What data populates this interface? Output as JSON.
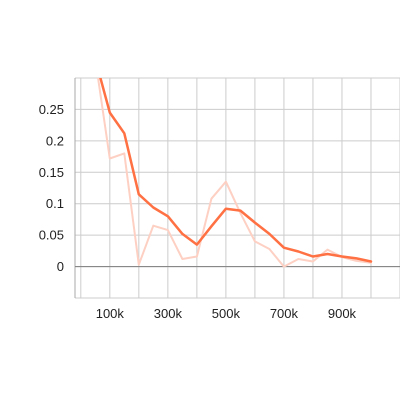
{
  "chart_data": {
    "type": "line",
    "title": "",
    "xlabel": "",
    "ylabel": "",
    "xlim": [
      -20000,
      1100000
    ],
    "ylim": [
      -0.05,
      0.3
    ],
    "grid": true,
    "x_ticks": [
      100000,
      300000,
      500000,
      700000,
      900000
    ],
    "x_tick_labels": [
      "100k",
      "300k",
      "500k",
      "700k",
      "900k"
    ],
    "x_grid": [
      0,
      100000,
      200000,
      300000,
      400000,
      500000,
      600000,
      700000,
      800000,
      900000,
      1000000,
      1100000
    ],
    "y_ticks": [
      0,
      0.05,
      0.1,
      0.15,
      0.2,
      0.25
    ],
    "y_tick_labels": [
      "0",
      "0.05",
      "0.1",
      "0.15",
      "0.2",
      "0.25"
    ],
    "y_grid": [
      -0.05,
      0,
      0.05,
      0.1,
      0.15,
      0.2,
      0.25,
      0.3
    ],
    "series": [
      {
        "style": "raw",
        "color": "#fdd0c3",
        "x": [
          50000,
          100000,
          150000,
          200000,
          250000,
          300000,
          350000,
          400000,
          450000,
          500000,
          550000,
          600000,
          650000,
          700000,
          750000,
          800000,
          850000,
          900000,
          950000,
          1000000
        ],
        "y": [
          0.33,
          0.172,
          0.18,
          0.003,
          0.065,
          0.058,
          0.012,
          0.016,
          0.108,
          0.135,
          0.085,
          0.04,
          0.028,
          0.0,
          0.012,
          0.008,
          0.027,
          0.015,
          0.009,
          0.006
        ]
      },
      {
        "style": "smoothed",
        "color": "#ff7043",
        "x": [
          50000,
          100000,
          150000,
          200000,
          250000,
          300000,
          350000,
          400000,
          450000,
          500000,
          550000,
          600000,
          650000,
          700000,
          750000,
          800000,
          850000,
          900000,
          950000,
          1000000
        ],
        "y": [
          0.33,
          0.245,
          0.212,
          0.115,
          0.094,
          0.08,
          0.052,
          0.035,
          0.064,
          0.092,
          0.089,
          0.07,
          0.052,
          0.03,
          0.024,
          0.016,
          0.02,
          0.016,
          0.013,
          0.008
        ]
      }
    ]
  }
}
